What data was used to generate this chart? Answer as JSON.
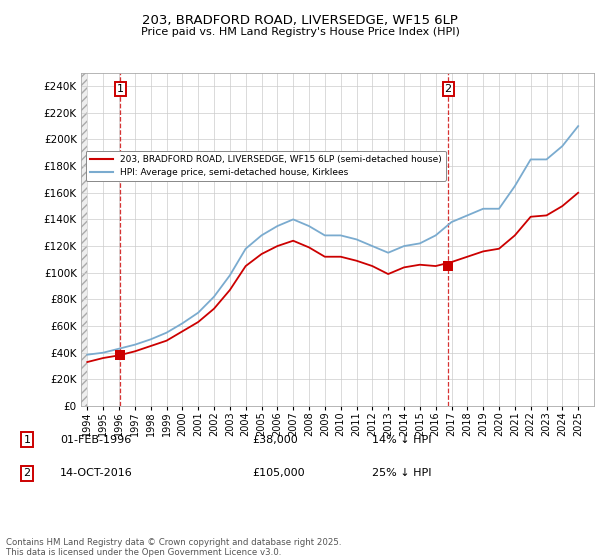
{
  "title1": "203, BRADFORD ROAD, LIVERSEDGE, WF15 6LP",
  "title2": "Price paid vs. HM Land Registry's House Price Index (HPI)",
  "ylim": [
    0,
    250000
  ],
  "yticks": [
    0,
    20000,
    40000,
    60000,
    80000,
    100000,
    120000,
    140000,
    160000,
    180000,
    200000,
    220000,
    240000
  ],
  "sale1_x": 1996.08,
  "sale1_y": 38000,
  "sale2_x": 2016.79,
  "sale2_y": 105000,
  "xlim_left": 1993.6,
  "xlim_right": 2026.0,
  "hatch_end": 1994.0,
  "legend_line1": "203, BRADFORD ROAD, LIVERSEDGE, WF15 6LP (semi-detached house)",
  "legend_line2": "HPI: Average price, semi-detached house, Kirklees",
  "annotation1_label": "1",
  "annotation1_date": "01-FEB-1996",
  "annotation1_price": "£38,000",
  "annotation1_hpi": "14% ↓ HPI",
  "annotation2_label": "2",
  "annotation2_date": "14-OCT-2016",
  "annotation2_price": "£105,000",
  "annotation2_hpi": "25% ↓ HPI",
  "footnote": "Contains HM Land Registry data © Crown copyright and database right 2025.\nThis data is licensed under the Open Government Licence v3.0.",
  "hpi_color": "#7aabcf",
  "price_color": "#cc0000",
  "vline_color": "#cc0000",
  "grid_color": "#cccccc",
  "bg_color": "#ffffff",
  "hpi_years": [
    1994,
    1995,
    1996,
    1997,
    1998,
    1999,
    2000,
    2001,
    2002,
    2003,
    2004,
    2005,
    2006,
    2007,
    2008,
    2009,
    2010,
    2011,
    2012,
    2013,
    2014,
    2015,
    2016,
    2017,
    2018,
    2019,
    2020,
    2021,
    2022,
    2023,
    2024,
    2025
  ],
  "hpi_vals": [
    38500,
    40000,
    43000,
    46000,
    50000,
    55000,
    62000,
    70000,
    82000,
    98000,
    118000,
    128000,
    135000,
    140000,
    135000,
    128000,
    128000,
    125000,
    120000,
    115000,
    120000,
    122000,
    128000,
    138000,
    143000,
    148000,
    148000,
    165000,
    185000,
    185000,
    195000,
    210000
  ],
  "red_years": [
    1994,
    1995,
    1996,
    1997,
    1998,
    1999,
    2000,
    2001,
    2002,
    2003,
    2004,
    2005,
    2006,
    2007,
    2008,
    2009,
    2010,
    2011,
    2012,
    2013,
    2014,
    2015,
    2016,
    2017,
    2018,
    2019,
    2020,
    2021,
    2022,
    2023,
    2024,
    2025
  ],
  "red_vals": [
    33000,
    36000,
    38000,
    41000,
    45000,
    49000,
    56000,
    63000,
    73000,
    87000,
    105000,
    114000,
    120000,
    124000,
    119000,
    112000,
    112000,
    109000,
    105000,
    99000,
    104000,
    106000,
    105000,
    108000,
    112000,
    116000,
    118000,
    128000,
    142000,
    143000,
    150000,
    160000
  ]
}
